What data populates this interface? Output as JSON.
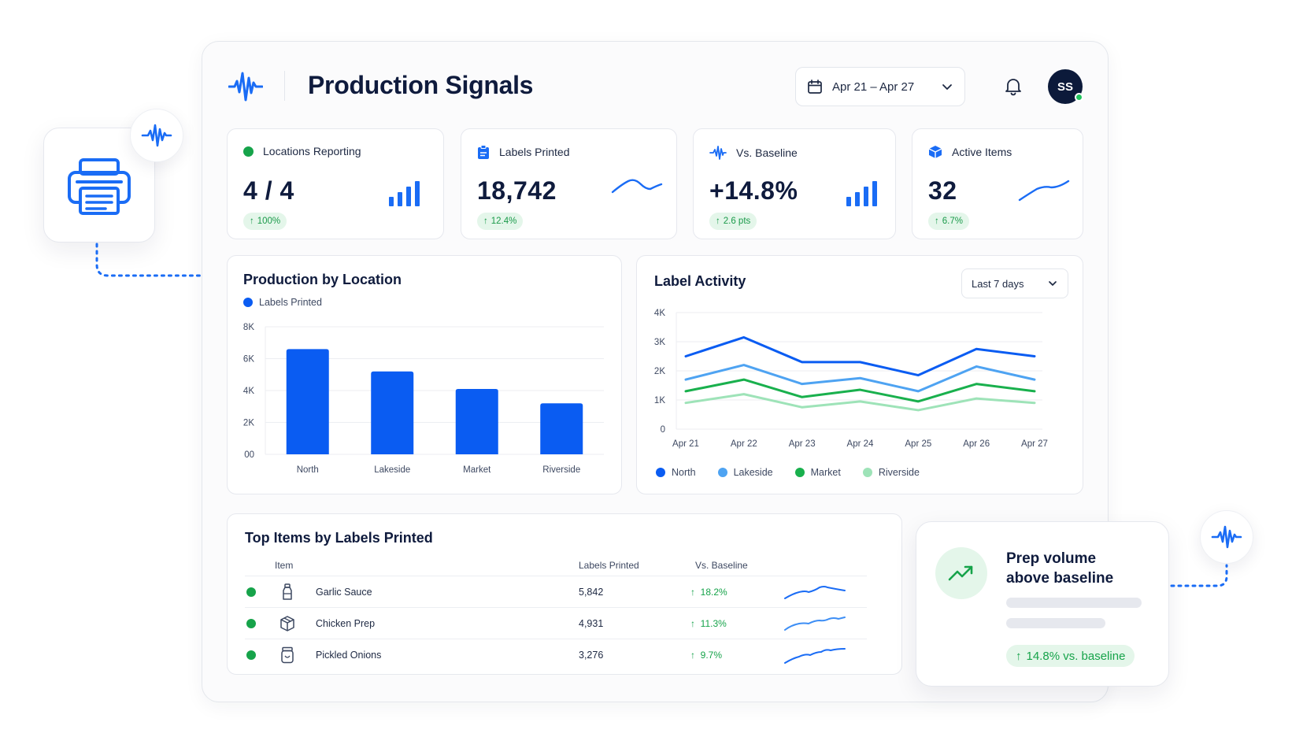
{
  "header": {
    "title": "Production Signals",
    "date_range": "Apr 21 – Apr 27",
    "avatar_initials": "SS",
    "avatar_status_color": "#22c55e"
  },
  "kpis": [
    {
      "label": "Locations Reporting",
      "value": "4 / 4",
      "delta": "100%",
      "icon": "green-dot-icon",
      "graphic": "signal-bars-icon"
    },
    {
      "label": "Labels Printed",
      "value": "18,742",
      "delta": "12.4%",
      "icon": "clipboard-icon",
      "graphic": "sparkline"
    },
    {
      "label": "Vs. Baseline",
      "value": "+14.8%",
      "delta": "2.6 pts",
      "icon": "waveform-icon",
      "graphic": "signal-bars-icon"
    },
    {
      "label": "Active Items",
      "value": "32",
      "delta": "6.7%",
      "icon": "cube-icon",
      "graphic": "sparkline"
    }
  ],
  "production_by_location": {
    "title": "Production by Location",
    "legend": "Labels Printed"
  },
  "label_activity": {
    "title": "Label Activity",
    "range_select": "Last 7 days"
  },
  "chart_data": [
    {
      "type": "bar",
      "title": "Production by Location",
      "categories": [
        "North",
        "Lakeside",
        "Market",
        "Riverside"
      ],
      "series": [
        {
          "name": "Labels Printed",
          "values": [
            6600,
            5200,
            4100,
            3200
          ]
        }
      ],
      "y_tick_labels": [
        "00",
        "2K",
        "4K",
        "6K",
        "8K"
      ],
      "ylim": [
        0,
        8000
      ],
      "grid": true,
      "color": "#0a5cf2"
    },
    {
      "type": "line",
      "title": "Label Activity",
      "x": [
        "Apr 21",
        "Apr 22",
        "Apr 23",
        "Apr 24",
        "Apr 25",
        "Apr 26",
        "Apr 27"
      ],
      "series": [
        {
          "name": "North",
          "color": "#0a5cf2",
          "values": [
            2500,
            3150,
            2300,
            2300,
            1850,
            2750,
            2500
          ]
        },
        {
          "name": "Lakeside",
          "color": "#4ea3f2",
          "values": [
            1700,
            2200,
            1550,
            1750,
            1300,
            2150,
            1700
          ]
        },
        {
          "name": "Market",
          "color": "#19b04d",
          "values": [
            1300,
            1700,
            1100,
            1350,
            950,
            1550,
            1300
          ]
        },
        {
          "name": "Riverside",
          "color": "#9ee3b8",
          "values": [
            900,
            1200,
            750,
            950,
            650,
            1050,
            900
          ]
        }
      ],
      "y_tick_labels": [
        "0",
        "1K",
        "2K",
        "3K",
        "4K"
      ],
      "ylim": [
        0,
        4000
      ],
      "grid": true,
      "legend": "bottom"
    }
  ],
  "top_items": {
    "title": "Top Items by Labels Printed",
    "columns": {
      "item": "Item",
      "labels": "Labels Printed",
      "baseline": "Vs. Baseline"
    },
    "rows": [
      {
        "name": "Garlic Sauce",
        "labels": "5,842",
        "delta": "18.2%",
        "icon": "bottle-icon"
      },
      {
        "name": "Chicken Prep",
        "labels": "4,931",
        "delta": "11.3%",
        "icon": "box-icon"
      },
      {
        "name": "Pickled Onions",
        "labels": "3,276",
        "delta": "9.7%",
        "icon": "jar-icon"
      }
    ]
  },
  "alert_card": {
    "title_line1": "Prep volume",
    "title_line2": "above baseline",
    "badge": "14.8% vs. baseline"
  },
  "colors": {
    "accent_blue": "#0a5cf2",
    "positive_green": "#16a34a",
    "badge_green_bg": "#e4f6ea"
  }
}
